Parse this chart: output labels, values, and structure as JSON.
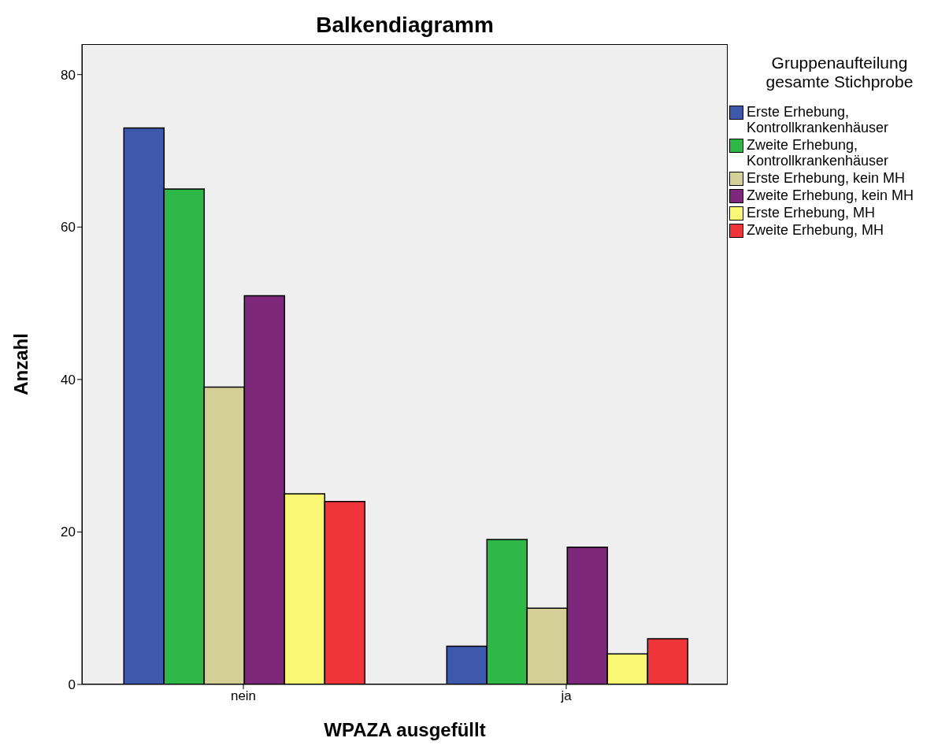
{
  "chart_data": {
    "type": "bar",
    "title": "Balkendiagramm",
    "xlabel": "WPAZA ausgefüllt",
    "ylabel": "Anzahl",
    "legend_title": "Gruppenaufteilung gesamte Stichprobe",
    "categories": [
      "nein",
      "ja"
    ],
    "series": [
      {
        "name": "Erste Erhebung, Kontrollkrankenhäuser",
        "color": "#3e58ac",
        "values": [
          73,
          5
        ]
      },
      {
        "name": "Zweite Erhebung, Kontrollkrankenhäuser",
        "color": "#2eb848",
        "values": [
          65,
          19
        ]
      },
      {
        "name": "Erste Erhebung, kein MH",
        "color": "#d4cf96",
        "values": [
          39,
          10
        ]
      },
      {
        "name": "Zweite Erhebung, kein MH",
        "color": "#7d287b",
        "values": [
          51,
          18
        ]
      },
      {
        "name": "Erste Erhebung, MH",
        "color": "#faf775",
        "values": [
          25,
          4
        ]
      },
      {
        "name": "Zweite Erhebung, MH",
        "color": "#ef343a",
        "values": [
          24,
          6
        ]
      }
    ],
    "ylim": [
      0,
      84
    ],
    "yticks": [
      0,
      20,
      40,
      60,
      80
    ],
    "grid": false,
    "legend": "top right"
  }
}
